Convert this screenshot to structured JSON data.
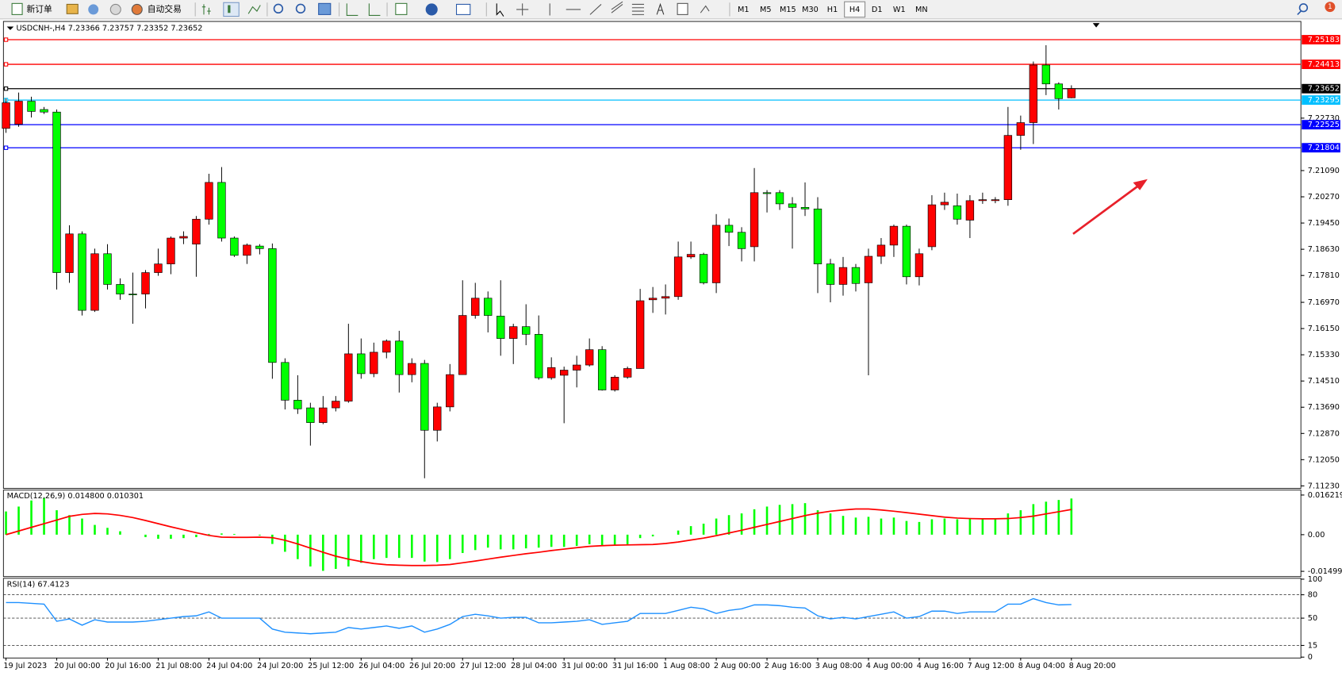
{
  "toolbar": {
    "new_order": "新订单",
    "auto_trade": "自动交易",
    "timeframes": [
      "M1",
      "M5",
      "M15",
      "M30",
      "H1",
      "H4",
      "D1",
      "W1",
      "MN"
    ],
    "active_timeframe": "H4",
    "notification_count": 1
  },
  "chart_data": [
    {
      "type": "candlestick",
      "title": "USDCNH-,H4 7.23366 7.23757 7.23352 7.23652",
      "categories": [
        "19 Jul 2023",
        null,
        null,
        null,
        "20 Jul 00:00",
        null,
        null,
        null,
        "20 Jul 16:00",
        null,
        null,
        null,
        "21 Jul 08:00",
        null,
        null,
        null,
        "24 Jul 04:00",
        null,
        null,
        null,
        "24 Jul 20:00",
        null,
        null,
        null,
        "25 Jul 12:00",
        null,
        null,
        null,
        "26 Jul 04:00",
        null,
        null,
        null,
        "26 Jul 20:00",
        null,
        null,
        null,
        "27 Jul 12:00",
        null,
        null,
        null,
        "28 Jul 04:00",
        null,
        null,
        null,
        "31 Jul 00:00",
        null,
        null,
        null,
        "31 Jul 16:00",
        null,
        null,
        null,
        "1 Aug 08:00",
        null,
        null,
        null,
        "2 Aug 00:00",
        null,
        null,
        null,
        "2 Aug 16:00",
        null,
        null,
        null,
        "3 Aug 08:00",
        null,
        null,
        null,
        "4 Aug 00:00",
        null,
        null,
        null,
        "4 Aug 16:00",
        null,
        null,
        null,
        "7 Aug 12:00",
        null,
        null,
        null,
        "8 Aug 04:00",
        null,
        null,
        null,
        "8 Aug 20:00"
      ],
      "open": [
        7.2241,
        7.2254,
        7.2326,
        7.23,
        7.2292,
        7.179,
        7.1911,
        7.1672,
        7.1849,
        7.1753,
        7.1723,
        7.1723,
        7.179,
        7.1817,
        7.1898,
        7.1879,
        7.1957,
        7.2072,
        7.1898,
        7.1844,
        7.1873,
        7.1865,
        7.1509,
        7.1391,
        7.1367,
        7.1321,
        7.1367,
        7.1388,
        7.1536,
        7.1474,
        7.1541,
        7.1576,
        7.1471,
        7.1506,
        7.1297,
        7.137,
        7.1471,
        7.1656,
        7.171,
        7.1654,
        7.1584,
        7.1621,
        7.1597,
        7.1461,
        7.1469,
        7.1485,
        7.1501,
        7.1549,
        7.1423,
        7.1463,
        7.149,
        7.1705,
        7.171,
        7.1715,
        7.1839,
        7.1847,
        7.1758,
        7.1938,
        7.1916,
        7.1871,
        7.204,
        7.204,
        7.2005,
        7.1994,
        7.1989,
        7.1817,
        7.1753,
        7.1806,
        7.1758,
        7.1841,
        7.1876,
        7.1935,
        7.1777,
        7.1871,
        7.2002,
        7.1999,
        7.1954,
        7.2015,
        7.2015,
        7.2018,
        7.2219,
        7.2259,
        7.2439,
        7.238,
        7.23366
      ],
      "high": [
        7.2334,
        7.2353,
        7.234,
        7.2308,
        7.23,
        7.1938,
        7.1919,
        7.1865,
        7.1879,
        7.1772,
        7.179,
        7.1798,
        7.1865,
        7.1903,
        7.1919,
        7.1967,
        7.2099,
        7.212,
        7.1903,
        7.1881,
        7.1879,
        7.1881,
        7.1522,
        7.1469,
        7.1383,
        7.1404,
        7.1404,
        7.163,
        7.1584,
        7.1571,
        7.1581,
        7.1608,
        7.1522,
        7.1517,
        7.1383,
        7.1504,
        7.1766,
        7.1758,
        7.1731,
        7.1766,
        7.163,
        7.1691,
        7.1656,
        7.1525,
        7.1496,
        7.153,
        7.1584,
        7.156,
        7.1469,
        7.1496,
        7.1739,
        7.1745,
        7.1753,
        7.1887,
        7.1887,
        7.1852,
        7.1973,
        7.1959,
        7.1932,
        7.2117,
        7.2048,
        7.2048,
        7.2026,
        7.2072,
        7.2026,
        7.1833,
        7.1839,
        7.1817,
        7.1865,
        7.1898,
        7.194,
        7.194,
        7.1865,
        7.2032,
        7.204,
        7.2037,
        7.2032,
        7.204,
        7.2026,
        7.2308,
        7.2281,
        7.245,
        7.2501,
        7.2385,
        7.23757
      ],
      "low": [
        7.2227,
        7.2246,
        7.2275,
        7.2286,
        7.1737,
        7.1758,
        7.1656,
        7.1667,
        7.1737,
        7.1705,
        7.163,
        7.1678,
        7.178,
        7.1785,
        7.1879,
        7.1777,
        7.194,
        7.1887,
        7.1839,
        7.1817,
        7.1847,
        7.1458,
        7.1362,
        7.1348,
        7.1249,
        7.1316,
        7.1356,
        7.1383,
        7.1458,
        7.1463,
        7.1522,
        7.1415,
        7.1447,
        7.1147,
        7.1262,
        7.1356,
        7.1471,
        7.1646,
        7.1603,
        7.153,
        7.1504,
        7.1563,
        7.1455,
        7.1455,
        7.1319,
        7.1431,
        7.1496,
        7.1421,
        7.1418,
        7.1458,
        7.149,
        7.1664,
        7.1659,
        7.1705,
        7.1833,
        7.1753,
        7.1726,
        7.1873,
        7.1825,
        7.1825,
        7.1978,
        7.1986,
        7.1865,
        7.1967,
        7.1726,
        7.1697,
        7.1718,
        7.1731,
        7.1469,
        7.1817,
        7.1839,
        7.1753,
        7.175,
        7.186,
        7.1986,
        7.194,
        7.1898,
        7.2005,
        7.2007,
        7.1999,
        7.2174,
        7.2192,
        7.2345,
        7.23,
        7.23352
      ],
      "close": [
        7.2321,
        7.2326,
        7.2294,
        7.2292,
        7.179,
        7.1911,
        7.1672,
        7.1849,
        7.1753,
        7.1723,
        7.1721,
        7.179,
        7.1817,
        7.1898,
        7.1903,
        7.1957,
        7.2072,
        7.1898,
        7.1844,
        7.1876,
        7.1865,
        7.1509,
        7.1391,
        7.1364,
        7.1321,
        7.1367,
        7.1388,
        7.1536,
        7.1474,
        7.1541,
        7.1576,
        7.1471,
        7.1506,
        7.1297,
        7.137,
        7.1471,
        7.1656,
        7.171,
        7.1656,
        7.1584,
        7.1621,
        7.1597,
        7.1461,
        7.1493,
        7.1485,
        7.1501,
        7.1549,
        7.1423,
        7.1463,
        7.149,
        7.1702,
        7.171,
        7.1715,
        7.1839,
        7.1847,
        7.1758,
        7.1938,
        7.1916,
        7.1865,
        7.204,
        7.2037,
        7.2005,
        7.1994,
        7.1989,
        7.1817,
        7.1753,
        7.1806,
        7.1756,
        7.1841,
        7.1876,
        7.1935,
        7.1777,
        7.1849,
        7.2002,
        7.201,
        7.1957,
        7.2015,
        7.2018,
        7.2018,
        7.2219,
        7.2259,
        7.2439,
        7.238,
        7.2334,
        7.23652
      ],
      "up_color": "#ff0000",
      "down_color": "#00ff00",
      "ylim": [
        7.1118,
        7.257
      ],
      "yticks": [
        {
          "value": 7.2273,
          "label": "7.22730"
        },
        {
          "value": 7.2109,
          "label": "7.21090"
        },
        {
          "value": 7.2027,
          "label": "7.20270"
        },
        {
          "value": 7.1945,
          "label": "7.19450"
        },
        {
          "value": 7.1863,
          "label": "7.18630"
        },
        {
          "value": 7.1781,
          "label": "7.17810"
        },
        {
          "value": 7.1697,
          "label": "7.16970"
        },
        {
          "value": 7.1615,
          "label": "7.16150"
        },
        {
          "value": 7.1533,
          "label": "7.15330"
        },
        {
          "value": 7.1451,
          "label": "7.14510"
        },
        {
          "value": 7.1369,
          "label": "7.13690"
        },
        {
          "value": 7.1287,
          "label": "7.12870"
        },
        {
          "value": 7.1205,
          "label": "7.12050"
        },
        {
          "value": 7.1123,
          "label": "7.11230"
        }
      ],
      "levels": [
        {
          "value": 7.25183,
          "color": "#ff0000"
        },
        {
          "value": 7.24413,
          "color": "#ff0000"
        },
        {
          "value": 7.23652,
          "color": "#000000"
        },
        {
          "value": 7.23295,
          "color": "#00bfff"
        },
        {
          "value": 7.22525,
          "color": "#0000ff"
        },
        {
          "value": 7.21804,
          "color": "#0000ff"
        }
      ]
    },
    {
      "type": "bar",
      "title": "MACD(12,26,9) 0.014800 0.010301",
      "values": [
        0.0095,
        0.0115,
        0.014,
        0.015,
        0.01,
        0.008,
        0.0066,
        0.004,
        0.0028,
        0.0014,
        0,
        -0.001,
        -0.0017,
        -0.0017,
        -0.0014,
        -0.001,
        0.0003,
        0.0005,
        0.0003,
        0,
        -0.0003,
        -0.0038,
        -0.007,
        -0.01,
        -0.013,
        -0.0148,
        -0.014,
        -0.013,
        -0.0115,
        -0.01,
        -0.0095,
        -0.0095,
        -0.0095,
        -0.011,
        -0.0112,
        -0.01,
        -0.0075,
        -0.0063,
        -0.0053,
        -0.006,
        -0.006,
        -0.0056,
        -0.0053,
        -0.005,
        -0.005,
        -0.0046,
        -0.0039,
        -0.0046,
        -0.0042,
        -0.0039,
        -0.0014,
        -0.0007,
        0,
        0.0017,
        0.0035,
        0.0045,
        0.0066,
        0.008,
        0.0087,
        0.0104,
        0.0115,
        0.0122,
        0.0125,
        0.0129,
        0.01,
        0.0087,
        0.0077,
        0.007,
        0.0073,
        0.0066,
        0.007,
        0.0056,
        0.0052,
        0.0063,
        0.0066,
        0.0063,
        0.0066,
        0.0066,
        0.0063,
        0.0087,
        0.01,
        0.0125,
        0.0135,
        0.0142,
        0.0148
      ],
      "color": "#00ff00",
      "signal": {
        "values": [
          0,
          0.0015,
          0.003,
          0.0045,
          0.006,
          0.0075,
          0.0083,
          0.0087,
          0.0085,
          0.0079,
          0.007,
          0.0058,
          0.0045,
          0.0032,
          0.002,
          0.0008,
          -0.0003,
          -0.001,
          -0.0011,
          -0.0011,
          -0.001,
          -0.0012,
          -0.0023,
          -0.0038,
          -0.0055,
          -0.0072,
          -0.0088,
          -0.01,
          -0.011,
          -0.0118,
          -0.0123,
          -0.0125,
          -0.0126,
          -0.0126,
          -0.0125,
          -0.0122,
          -0.0115,
          -0.0108,
          -0.01,
          -0.0092,
          -0.0085,
          -0.0078,
          -0.0072,
          -0.0065,
          -0.0059,
          -0.0053,
          -0.0048,
          -0.0045,
          -0.0043,
          -0.0042,
          -0.0041,
          -0.004,
          -0.0036,
          -0.003,
          -0.0022,
          -0.0014,
          -0.0004,
          0.0007,
          0.0018,
          0.003,
          0.0042,
          0.0054,
          0.0066,
          0.0078,
          0.0088,
          0.0096,
          0.0101,
          0.0105,
          0.0105,
          0.0101,
          0.0096,
          0.009,
          0.0084,
          0.0078,
          0.0072,
          0.0068,
          0.0066,
          0.0065,
          0.0065,
          0.0066,
          0.007,
          0.0076,
          0.0085,
          0.0094,
          0.010301
        ],
        "color": "#ff0000"
      },
      "ylim": [
        -0.0168,
        0.0179
      ],
      "yticks": [
        0.016219,
        {
          "value": 0,
          "label": "0.00"
        },
        -0.014998
      ]
    },
    {
      "type": "line",
      "title": "RSI(14) 67.4123",
      "values": [
        70,
        70,
        69,
        68,
        46,
        49,
        41,
        48,
        45,
        45,
        45,
        46,
        48,
        50,
        52,
        53,
        58,
        50,
        50,
        50,
        50,
        36,
        32,
        31,
        30,
        31,
        32,
        38,
        36,
        38,
        40,
        37,
        40,
        32,
        36,
        42,
        52,
        55,
        53,
        50,
        51,
        51,
        44,
        44,
        45,
        46,
        48,
        42,
        44,
        46,
        56,
        56,
        56,
        60,
        64,
        62,
        56,
        60,
        62,
        67,
        67,
        66,
        64,
        63,
        53,
        49,
        51,
        49,
        52,
        55,
        58,
        50,
        52,
        59,
        59,
        56,
        58,
        58,
        58,
        68,
        68,
        75,
        70,
        67,
        67.4123
      ],
      "color": "#1e90ff",
      "ylim": [
        0,
        100
      ],
      "yticks": [
        100,
        80,
        50,
        15,
        0
      ],
      "levels": [
        80,
        50,
        15
      ]
    }
  ]
}
